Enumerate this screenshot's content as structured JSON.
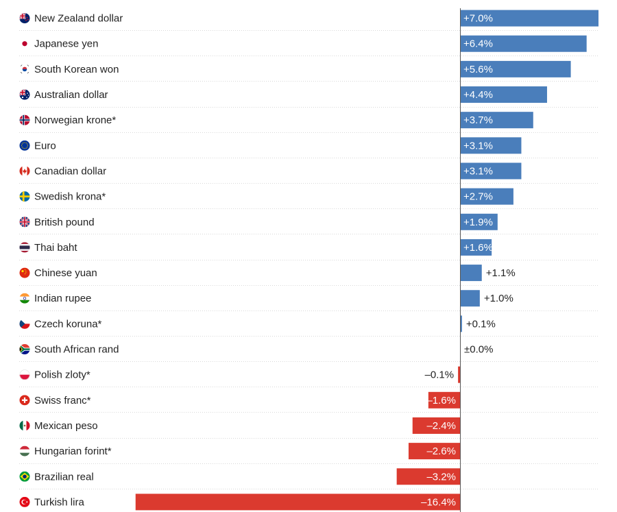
{
  "chart_data": {
    "type": "bar",
    "orientation": "horizontal",
    "value_format": "signed percent, one decimal",
    "categories": [
      "New Zealand dollar",
      "Japanese yen",
      "South Korean won",
      "Australian dollar",
      "Norwegian krone*",
      "Euro",
      "Canadian dollar",
      "Swedish krona*",
      "British pound",
      "Thai baht",
      "Chinese yuan",
      "Indian rupee",
      "Czech koruna*",
      "South African rand",
      "Polish zloty*",
      "Swiss franc*",
      "Mexican peso",
      "Hungarian forint*",
      "Brazilian real",
      "Turkish lira"
    ],
    "values": [
      7.0,
      6.4,
      5.6,
      4.4,
      3.7,
      3.1,
      3.1,
      2.7,
      1.9,
      1.6,
      1.1,
      1.0,
      0.1,
      0.0,
      -0.1,
      -1.6,
      -2.4,
      -2.6,
      -3.2,
      -16.4
    ],
    "value_labels": [
      "+7.0%",
      "+6.4%",
      "+5.6%",
      "+4.4%",
      "+3.7%",
      "+3.1%",
      "+3.1%",
      "+2.7%",
      "+1.9%",
      "+1.6%",
      "+1.1%",
      "+1.0%",
      "+0.1%",
      "±0.0%",
      "–0.1%",
      "–1.6%",
      "–2.4%",
      "–2.6%",
      "–3.2%",
      "–16.4%"
    ],
    "flags": [
      "new-zealand-flag-icon",
      "japan-flag-icon",
      "south-korea-flag-icon",
      "australia-flag-icon",
      "norway-flag-icon",
      "eu-flag-icon",
      "canada-flag-icon",
      "sweden-flag-icon",
      "uk-flag-icon",
      "thailand-flag-icon",
      "china-flag-icon",
      "india-flag-icon",
      "czech-flag-icon",
      "south-africa-flag-icon",
      "poland-flag-icon",
      "switzerland-flag-icon",
      "mexico-flag-icon",
      "hungary-flag-icon",
      "brazil-flag-icon",
      "turkey-flag-icon"
    ],
    "colors": {
      "positive": "#4a7ebb",
      "negative": "#db3a2f",
      "gridline": "#d8d8d8",
      "axis": "#555555"
    },
    "title": "",
    "xlabel": "",
    "ylabel": "",
    "grid": true,
    "legend": "none"
  }
}
